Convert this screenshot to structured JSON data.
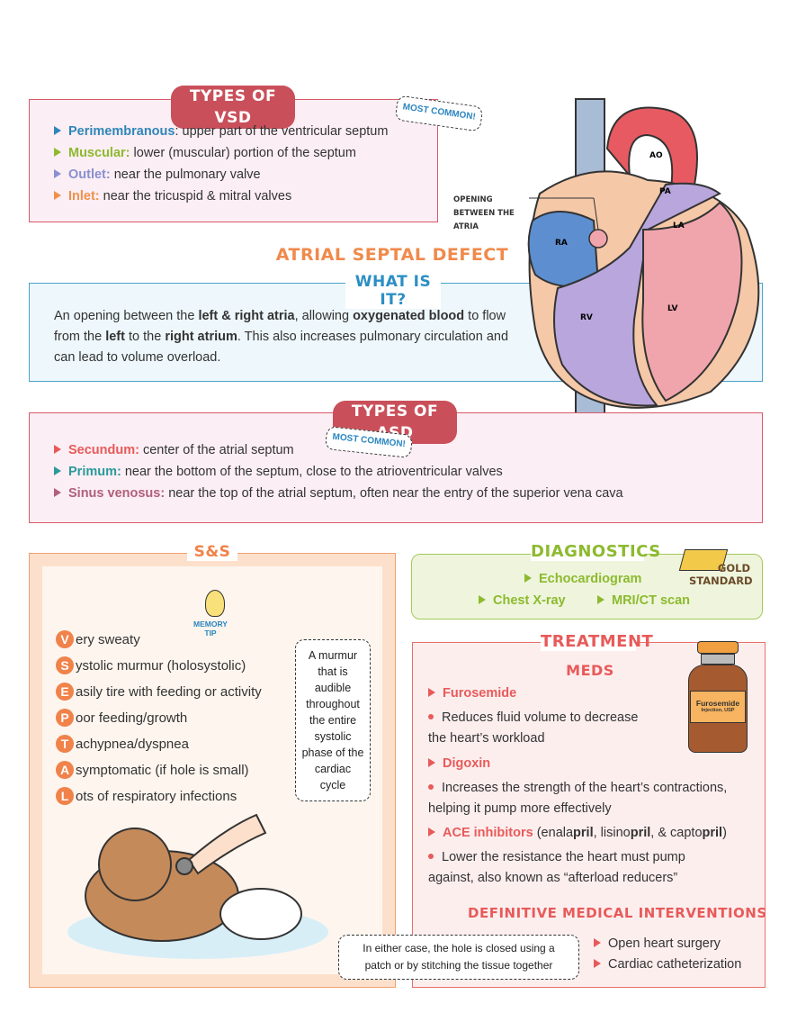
{
  "vsd": {
    "title": "TYPES OF VSD",
    "badge": "MOST COMMON!",
    "items": [
      {
        "term": "Perimembranous",
        "sep": ":",
        "desc": " upper part of the ventricular septum",
        "color": "#2f86b8"
      },
      {
        "term": "Muscular:",
        "sep": "",
        "desc": " lower (muscular) portion of the septum",
        "color": "#8dba2f"
      },
      {
        "term": "Outlet:",
        "sep": "",
        "desc": " near the pulmonary valve",
        "color": "#8a8fd0"
      },
      {
        "term": "Inlet:",
        "sep": "",
        "desc": " near the tricuspid & mitral valves",
        "color": "#f0904a"
      }
    ]
  },
  "asd": {
    "title": "ATRIAL SEPTAL DEFECT",
    "what_title": "WHAT IS IT?",
    "what_parts": [
      "An opening between the ",
      "left & right atria",
      ", allowing ",
      "oxygenated blood",
      " to flow from the ",
      "left",
      " to the ",
      "right atrium",
      ". This also increases pulmonary circulation and can lead to volume overload."
    ]
  },
  "heart": {
    "callout": "OPENING BETWEEN THE ATRIA",
    "labels": {
      "ra": "RA",
      "rv": "RV",
      "ao": "AO",
      "pa": "PA",
      "la": "LA",
      "lv": "LV"
    }
  },
  "asd_types": {
    "title": "TYPES OF ASD",
    "badge": "MOST COMMON!",
    "items": [
      {
        "term": "Secundum:",
        "desc": " center of the atrial septum",
        "color": "#e85a5a"
      },
      {
        "term": "Primum:",
        "desc": " near the bottom of the septum, close to the atrioventricular valves",
        "color": "#2a9a9a"
      },
      {
        "term": "Sinus venosus:",
        "desc": " near the top of the atrial septum, often near the entry of the superior vena cava",
        "color": "#b0607a"
      }
    ]
  },
  "ss": {
    "title": "S&S",
    "memory_tip": "MEMORY TIP",
    "items": [
      {
        "letter": "V",
        "rest": "ery sweaty"
      },
      {
        "letter": "S",
        "rest": "ystolic murmur (holosystolic)"
      },
      {
        "letter": "E",
        "rest": "asily tire with feeding or activity"
      },
      {
        "letter": "P",
        "rest": "oor feeding/growth"
      },
      {
        "letter": "T",
        "rest": "achypnea/dyspnea"
      },
      {
        "letter": "A",
        "rest": "symptomatic (if hole is small)"
      },
      {
        "letter": "L",
        "rest": "ots of respiratory infections"
      }
    ],
    "murmur_note": "A murmur that is audible throughout the entire systolic phase of the cardiac cycle"
  },
  "diagnostics": {
    "title": "DIAGNOSTICS",
    "gold": "GOLD STANDARD",
    "items": [
      "Echocardiogram",
      "Chest X-ray",
      "MRI/CT scan"
    ]
  },
  "treatment": {
    "title": "TREATMENT",
    "meds_title": "MEDS",
    "vial_label": "Furosemide",
    "vial_sub": "Injection, USP",
    "furosemide": {
      "name": "Furosemide",
      "desc": "Reduces fluid volume to decrease",
      "desc2": "the heart’s workload"
    },
    "digoxin": {
      "name": "Digoxin",
      "desc": "Increases the strength of the heart’s contractions,",
      "desc2": "helping it pump more effectively"
    },
    "ace": {
      "name": "ACE inhibitors",
      "paren": [
        " (enala",
        "pril",
        ", lisino",
        "pril",
        ", & capto",
        "pril",
        ")"
      ],
      "desc": "Lower the resistance the heart must pump",
      "desc2": "against, also known as “afterload reducers”"
    },
    "interventions_title": "DEFINITIVE MEDICAL INTERVENTIONS",
    "note": "In either case, the hole is closed using a patch or by stitching the tissue together",
    "interventions": [
      "Open heart surgery",
      "Cardiac catheterization"
    ]
  }
}
